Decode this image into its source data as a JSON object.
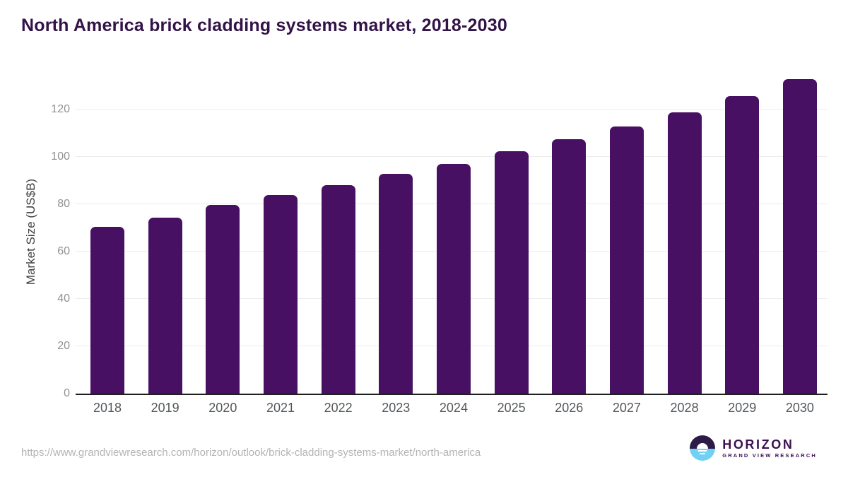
{
  "title": "North America brick cladding systems market, 2018-2030",
  "chart_data": {
    "type": "bar",
    "title": "North America brick cladding systems market, 2018-2030",
    "categories": [
      "2018",
      "2019",
      "2020",
      "2021",
      "2022",
      "2023",
      "2024",
      "2025",
      "2026",
      "2027",
      "2028",
      "2029",
      "2030"
    ],
    "values": [
      70.3,
      74.3,
      79.5,
      83.8,
      88.1,
      92.9,
      96.9,
      102.2,
      107.4,
      112.8,
      118.6,
      125.5,
      132.8
    ],
    "xlabel": "",
    "ylabel": "Market Size (US$B)",
    "ylim": [
      0,
      136.3
    ],
    "yticks": [
      0,
      20,
      40,
      60,
      80,
      100,
      120
    ],
    "bar_color": "#471063",
    "grid": "horizontal",
    "legend": "none"
  },
  "footer": {
    "source_url": "https://www.grandviewresearch.com/horizon/outlook/brick-cladding-systems-market/north-america",
    "logo_name": "HORIZON",
    "logo_sub": "GRAND VIEW RESEARCH"
  },
  "colors": {
    "background": "#ffffff",
    "bar": "#471063",
    "title_text": "#321348",
    "axis_line": "#1f1f1f",
    "gridline": "#ececec",
    "y_tick_text": "#8e9194",
    "x_tick_text": "#54585c",
    "y_axis_label_text": "#3f3f3f",
    "url_text": "#b4b4b4",
    "logo_purple": "#3a1150",
    "logo_dark_half": "#2d1b47",
    "logo_blue_half": "#70d1f5"
  }
}
